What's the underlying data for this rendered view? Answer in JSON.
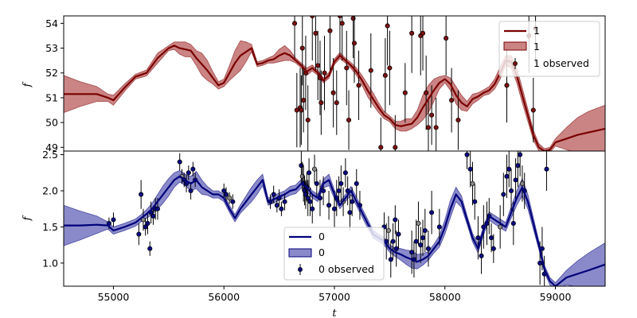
{
  "chart_data": [
    {
      "type": "line",
      "title": "",
      "xlabel": "",
      "ylabel": "f",
      "xlim": [
        54550,
        59450
      ],
      "ylim": [
        48.85,
        54.3
      ],
      "xticks": [],
      "yticks": [
        49,
        50,
        51,
        52,
        53,
        54
      ],
      "legend_position": "upper right",
      "colors": {
        "line": "#7a0000",
        "band": "#a83232",
        "points": "#7a1010",
        "errorbars": "#000000"
      },
      "series": [
        {
          "name": "1",
          "kind": "mean",
          "x": [
            54550,
            54700,
            54850,
            54950,
            55000,
            55100,
            55200,
            55300,
            55400,
            55450,
            55500,
            55550,
            55600,
            55650,
            55700,
            55750,
            55800,
            55850,
            55900,
            55950,
            56000,
            56050,
            56100,
            56150,
            56200,
            56250,
            56300,
            56350,
            56400,
            56450,
            56500,
            56550,
            56600,
            56650,
            56700,
            56750,
            56800,
            56850,
            56900,
            56950,
            57000,
            57050,
            57100,
            57150,
            57200,
            57250,
            57300,
            57350,
            57400,
            57450,
            57500,
            57550,
            57600,
            57650,
            57700,
            57750,
            57800,
            57850,
            57900,
            57950,
            58000,
            58050,
            58100,
            58150,
            58200,
            58250,
            58300,
            58350,
            58400,
            58450,
            58500,
            58550,
            58600,
            58650,
            58700,
            58750,
            58800,
            58850,
            58900,
            58950,
            59000,
            59100,
            59200,
            59300,
            59450
          ],
          "y": [
            51.15,
            51.15,
            51.15,
            51.0,
            50.9,
            51.4,
            51.85,
            52.0,
            52.6,
            52.8,
            53.0,
            53.1,
            53.0,
            52.95,
            52.9,
            52.6,
            52.35,
            52.1,
            51.8,
            51.5,
            51.6,
            52.0,
            52.4,
            52.7,
            52.85,
            53.0,
            52.35,
            52.4,
            52.5,
            52.55,
            52.7,
            52.8,
            52.7,
            52.5,
            52.3,
            52.05,
            52.2,
            52.0,
            51.7,
            51.9,
            52.45,
            52.7,
            52.5,
            52.3,
            52.05,
            51.7,
            51.3,
            50.95,
            50.6,
            50.3,
            50.15,
            49.9,
            49.85,
            49.9,
            49.95,
            50.2,
            50.6,
            50.95,
            51.3,
            51.6,
            51.75,
            51.55,
            51.1,
            50.8,
            50.65,
            50.95,
            51.05,
            51.2,
            51.3,
            51.55,
            52.0,
            52.5,
            52.45,
            51.9,
            51.1,
            50.3,
            49.5,
            49.0,
            48.85,
            48.9,
            49.2,
            49.35,
            49.5,
            49.6,
            49.75
          ],
          "sigma": [
            0.75,
            0.5,
            0.3,
            0.15,
            0.2,
            0.15,
            0.1,
            0.12,
            0.2,
            0.15,
            0.1,
            0.15,
            0.25,
            0.3,
            0.25,
            0.3,
            0.45,
            0.4,
            0.25,
            0.15,
            0.15,
            0.3,
            0.5,
            0.6,
            0.4,
            0.15,
            0.1,
            0.1,
            0.1,
            0.15,
            0.25,
            0.3,
            0.2,
            0.1,
            0.1,
            0.15,
            0.12,
            0.1,
            0.1,
            0.12,
            0.12,
            0.12,
            0.1,
            0.12,
            0.15,
            0.2,
            0.25,
            0.25,
            0.2,
            0.15,
            0.12,
            0.15,
            0.2,
            0.25,
            0.2,
            0.3,
            0.5,
            0.55,
            0.45,
            0.25,
            0.15,
            0.25,
            0.35,
            0.3,
            0.2,
            0.2,
            0.15,
            0.12,
            0.15,
            0.2,
            0.25,
            0.2,
            0.25,
            0.3,
            0.3,
            0.25,
            0.2,
            0.15,
            0.1,
            0.1,
            0.15,
            0.45,
            0.7,
            0.85,
            0.95
          ]
        },
        {
          "name": "1",
          "kind": "band",
          "note": "shaded band = mean ± sigma"
        },
        {
          "name": "1 observed",
          "kind": "observed",
          "x": [
            56640,
            56660,
            56690,
            56700,
            56710,
            56720,
            56740,
            56760,
            56800,
            56830,
            56850,
            56870,
            56880,
            56910,
            56960,
            56990,
            57020,
            57050,
            57070,
            57110,
            57130,
            57170,
            57180,
            57220,
            57330,
            57420,
            57460,
            57480,
            57500,
            57550,
            57640,
            57700,
            57780,
            57800,
            57830,
            57850,
            57880,
            57920,
            58010,
            58060,
            58120,
            58560,
            58760,
            58800,
            58820
          ],
          "y": [
            54.0,
            50.5,
            50.6,
            50.5,
            53.0,
            50.9,
            52.0,
            50.1,
            54.3,
            53.6,
            52.3,
            51.8,
            50.8,
            52.0,
            53.7,
            51.2,
            50.8,
            54.3,
            54.0,
            52.2,
            50.1,
            54.2,
            53.2,
            51.5,
            52.1,
            49.0,
            51.9,
            53.9,
            52.2,
            49.0,
            51.2,
            53.6,
            53.5,
            53.6,
            51.2,
            49.8,
            50.3,
            49.8,
            53.4,
            50.9,
            50.1,
            51.5,
            53.5,
            50.5,
            53.8
          ],
          "yerr": [
            1.5,
            1.5,
            1.6,
            1.4,
            1.5,
            1.3,
            1.5,
            1.4,
            1.8,
            1.5,
            1.4,
            1.5,
            1.3,
            1.5,
            1.6,
            1.4,
            1.3,
            1.6,
            1.5,
            1.5,
            1.2,
            1.6,
            1.6,
            1.4,
            1.5,
            1.2,
            1.5,
            1.6,
            1.5,
            1.3,
            1.2,
            1.6,
            1.6,
            1.5,
            1.5,
            1.2,
            1.2,
            1.2,
            1.5,
            1.3,
            1.2,
            1.5,
            1.5,
            1.3,
            1.4
          ]
        }
      ],
      "legend": [
        {
          "label": "1",
          "symbol": "line"
        },
        {
          "label": "1",
          "symbol": "patch"
        },
        {
          "label": "1 observed",
          "symbol": "errorbar"
        }
      ]
    },
    {
      "type": "line",
      "title": "",
      "xlabel": "t",
      "ylabel": "f",
      "xlim": [
        54550,
        59450
      ],
      "ylim": [
        0.68,
        2.55
      ],
      "xticks": [
        55000,
        56000,
        57000,
        58000,
        59000
      ],
      "yticks": [
        1.0,
        1.5,
        2.0,
        2.5
      ],
      "legend_position": "lower center",
      "colors": {
        "line": "#00007a",
        "band": "#3c3ca8",
        "points": "#0a0a80",
        "errorbars": "#000000",
        "behind_markers": "#888888"
      },
      "series": [
        {
          "name": "0",
          "kind": "mean",
          "x": [
            54550,
            54700,
            54850,
            54950,
            55000,
            55100,
            55200,
            55250,
            55300,
            55350,
            55400,
            55450,
            55500,
            55550,
            55600,
            55650,
            55700,
            55750,
            55800,
            55850,
            55900,
            55950,
            56000,
            56050,
            56100,
            56150,
            56200,
            56250,
            56300,
            56350,
            56400,
            56450,
            56500,
            56550,
            56600,
            56650,
            56700,
            56750,
            56800,
            56850,
            56900,
            56950,
            57000,
            57050,
            57100,
            57150,
            57200,
            57250,
            57300,
            57350,
            57400,
            57450,
            57500,
            57550,
            57600,
            57650,
            57700,
            57750,
            57800,
            57850,
            57900,
            57950,
            58000,
            58050,
            58100,
            58150,
            58200,
            58250,
            58300,
            58350,
            58400,
            58450,
            58500,
            58550,
            58600,
            58650,
            58700,
            58750,
            58800,
            58850,
            58900,
            58950,
            59000,
            59100,
            59200,
            59300,
            59450
          ],
          "y": [
            1.52,
            1.52,
            1.53,
            1.52,
            1.45,
            1.5,
            1.56,
            1.62,
            1.68,
            1.75,
            1.85,
            1.95,
            2.05,
            2.15,
            2.2,
            2.15,
            2.1,
            2.15,
            2.05,
            2.0,
            1.95,
            1.95,
            1.9,
            1.75,
            1.62,
            1.75,
            1.85,
            1.95,
            2.05,
            2.15,
            1.85,
            1.88,
            1.92,
            1.95,
            2.0,
            2.02,
            2.1,
            2.05,
            1.95,
            1.9,
            2.1,
            2.15,
            1.95,
            1.8,
            1.9,
            2.0,
            1.85,
            1.7,
            1.55,
            1.4,
            1.35,
            1.3,
            1.2,
            1.15,
            1.12,
            1.08,
            1.05,
            1.02,
            1.05,
            1.1,
            1.2,
            1.3,
            1.5,
            1.75,
            1.95,
            1.85,
            1.6,
            1.35,
            1.2,
            1.45,
            1.65,
            1.6,
            1.55,
            1.5,
            1.7,
            1.9,
            2.05,
            1.85,
            1.55,
            1.25,
            0.92,
            0.75,
            0.68,
            0.8,
            0.85,
            0.9,
            0.98
          ],
          "sigma": [
            0.28,
            0.2,
            0.12,
            0.05,
            0.05,
            0.05,
            0.05,
            0.05,
            0.06,
            0.08,
            0.1,
            0.12,
            0.12,
            0.1,
            0.08,
            0.08,
            0.1,
            0.12,
            0.1,
            0.06,
            0.05,
            0.05,
            0.05,
            0.05,
            0.05,
            0.06,
            0.08,
            0.1,
            0.1,
            0.08,
            0.05,
            0.05,
            0.05,
            0.05,
            0.06,
            0.06,
            0.06,
            0.06,
            0.05,
            0.05,
            0.06,
            0.08,
            0.06,
            0.05,
            0.05,
            0.06,
            0.06,
            0.06,
            0.06,
            0.05,
            0.05,
            0.05,
            0.05,
            0.06,
            0.08,
            0.1,
            0.12,
            0.1,
            0.08,
            0.06,
            0.06,
            0.08,
            0.1,
            0.12,
            0.1,
            0.08,
            0.06,
            0.06,
            0.06,
            0.06,
            0.06,
            0.06,
            0.06,
            0.06,
            0.08,
            0.1,
            0.12,
            0.1,
            0.08,
            0.06,
            0.05,
            0.05,
            0.05,
            0.1,
            0.18,
            0.24,
            0.3
          ]
        },
        {
          "name": "0",
          "kind": "band",
          "note": "shaded band = mean ± sigma"
        },
        {
          "name": "0 observed",
          "kind": "observed",
          "x": [
            54960,
            55000,
            55230,
            55250,
            55270,
            55290,
            55310,
            55330,
            55340,
            55360,
            55380,
            55400,
            55600,
            55620,
            55640,
            55660,
            55680,
            55700,
            55720,
            55740,
            56000,
            56020,
            56050,
            56080,
            56420,
            56450,
            56480,
            56500,
            56520,
            56550,
            56700,
            56710,
            56720,
            56730,
            56740,
            56750,
            56760,
            56770,
            56780,
            56800,
            56820,
            56840,
            56870,
            56900,
            56950,
            57000,
            57020,
            57040,
            57060,
            57080,
            57100,
            57120,
            57140,
            57160,
            57200,
            57230,
            57450,
            57470,
            57490,
            57510,
            57530,
            57550,
            57560,
            57580,
            57700,
            57720,
            57740,
            57760,
            57780,
            57800,
            57820,
            57850,
            57880,
            57950,
            58200,
            58230,
            58250,
            58270,
            58300,
            58330,
            58350,
            58380,
            58400,
            58420,
            58440,
            58500,
            58530,
            58560,
            58580,
            58600,
            58620,
            58640,
            58660,
            58680,
            58700,
            58720,
            58860,
            58880,
            58900,
            58920
          ],
          "y": [
            1.55,
            1.6,
            1.4,
            1.95,
            1.6,
            1.5,
            1.55,
            1.2,
            1.7,
            1.65,
            1.75,
            1.75,
            2.4,
            2.2,
            2.15,
            2.1,
            2.25,
            2.0,
            2.3,
            2.15,
            2.0,
            1.95,
            1.9,
            1.85,
            1.85,
            1.95,
            1.8,
            1.9,
            1.75,
            1.85,
            2.35,
            2.2,
            2.1,
            2.0,
            1.95,
            2.05,
            1.9,
            2.25,
            1.85,
            1.75,
            2.3,
            2.1,
            1.9,
            2.0,
            1.8,
            1.75,
            1.9,
            2.0,
            2.1,
            1.85,
            2.25,
            2.0,
            1.7,
            1.85,
            2.1,
            1.8,
            1.5,
            1.3,
            1.45,
            1.05,
            1.3,
            1.6,
            1.2,
            1.4,
            1.15,
            1.05,
            1.3,
            1.55,
            1.25,
            1.35,
            1.45,
            1.2,
            1.7,
            1.5,
            2.5,
            2.3,
            2.1,
            1.85,
            1.35,
            1.1,
            1.5,
            1.55,
            1.65,
            1.35,
            1.2,
            1.5,
            1.95,
            2.2,
            2.3,
            2.0,
            1.55,
            2.15,
            2.35,
            2.5,
            2.1,
            2.0,
            1.0,
            1.2,
            0.85,
            2.3
          ],
          "yerr": [
            0.08,
            0.1,
            0.15,
            0.2,
            0.15,
            0.12,
            0.15,
            0.1,
            0.15,
            0.12,
            0.15,
            0.15,
            0.12,
            0.1,
            0.1,
            0.12,
            0.1,
            0.12,
            0.1,
            0.1,
            0.1,
            0.1,
            0.08,
            0.1,
            0.1,
            0.12,
            0.1,
            0.12,
            0.1,
            0.12,
            0.25,
            0.2,
            0.25,
            0.2,
            0.2,
            0.2,
            0.25,
            0.2,
            0.2,
            0.2,
            0.2,
            0.2,
            0.25,
            0.2,
            0.2,
            0.25,
            0.25,
            0.2,
            0.25,
            0.2,
            0.2,
            0.2,
            0.25,
            0.2,
            0.2,
            0.2,
            0.2,
            0.25,
            0.2,
            0.25,
            0.25,
            0.2,
            0.25,
            0.2,
            0.3,
            0.25,
            0.3,
            0.3,
            0.25,
            0.25,
            0.3,
            0.25,
            0.3,
            0.25,
            0.2,
            0.25,
            0.3,
            0.25,
            0.3,
            0.25,
            0.3,
            0.3,
            0.25,
            0.2,
            0.2,
            0.3,
            0.3,
            0.3,
            0.25,
            0.3,
            0.3,
            0.3,
            0.3,
            0.3,
            0.25,
            0.25,
            0.3,
            0.3,
            0.25,
            0.3
          ]
        }
      ],
      "legend": [
        {
          "label": "0",
          "symbol": "line"
        },
        {
          "label": "0",
          "symbol": "patch"
        },
        {
          "label": "0 observed",
          "symbol": "errorbar"
        }
      ]
    }
  ]
}
